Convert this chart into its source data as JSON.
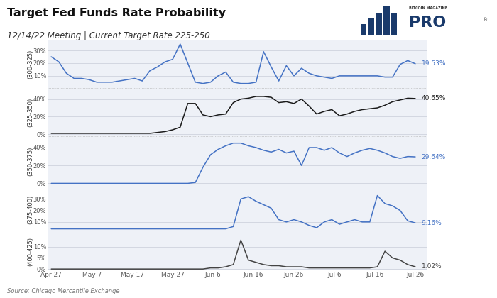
{
  "title": "Target Fed Funds Rate Probability",
  "subtitle": "12/14/22 Meeting | Current Target Rate 225-250",
  "source": "Source: Chicago Mercantile Exchange",
  "background_color": "#ffffff",
  "panel_bg": "#eef1f7",
  "grid_color": "#c8cdd8",
  "blue_color": "#4472c4",
  "black_color": "#1a1a1a",
  "dark_gray_color": "#444444",
  "x_labels": [
    "Apr 27",
    "May 7",
    "May 17",
    "May 27",
    "Jun 6",
    "Jun 16",
    "Jun 26",
    "Jul 6",
    "Jul 16",
    "Jul 26"
  ],
  "panels": [
    {
      "label": "(300-325)",
      "color": "#4472c4",
      "final_label": "19.53%",
      "yticks": [
        10,
        20,
        30
      ],
      "ylim": [
        0,
        38
      ],
      "data": [
        25,
        21,
        12,
        8,
        8,
        7,
        5,
        5,
        5,
        6,
        7,
        8,
        6,
        14,
        17,
        21,
        23,
        35,
        20,
        5,
        4,
        5,
        10,
        13,
        5,
        4,
        4,
        5,
        29,
        17,
        6,
        18,
        10,
        16,
        12,
        10,
        9,
        8,
        10,
        10,
        10,
        10,
        10,
        10,
        9,
        9,
        19,
        22,
        19.53
      ]
    },
    {
      "label": "(325-350)",
      "color": "#1a1a1a",
      "final_label": "40.65%",
      "yticks": [
        0,
        20,
        40
      ],
      "ylim": [
        -3,
        52
      ],
      "data": [
        1,
        1,
        1,
        1,
        1,
        1,
        1,
        1,
        1,
        1,
        1,
        1,
        1,
        1,
        2,
        3,
        5,
        8,
        35,
        35,
        22,
        20,
        22,
        23,
        36,
        40,
        41,
        43,
        43,
        42,
        36,
        37,
        35,
        40,
        32,
        23,
        26,
        28,
        21,
        23,
        26,
        28,
        29,
        30,
        33,
        37,
        39,
        41,
        40.65
      ]
    },
    {
      "label": "(350-375)",
      "color": "#4472c4",
      "final_label": "29.64%",
      "yticks": [
        0,
        20,
        40
      ],
      "ylim": [
        -2,
        52
      ],
      "data": [
        0,
        0,
        0,
        0,
        0,
        0,
        0,
        0,
        0,
        0,
        0,
        0,
        0,
        0,
        0,
        0,
        0,
        0,
        0,
        1,
        18,
        32,
        38,
        42,
        45,
        45,
        42,
        40,
        37,
        35,
        38,
        34,
        36,
        20,
        40,
        40,
        37,
        40,
        34,
        30,
        34,
        37,
        39,
        37,
        34,
        30,
        28,
        30,
        29.64
      ]
    },
    {
      "label": "(375-400)",
      "color": "#4472c4",
      "final_label": "9.16%",
      "yticks": [
        10,
        20,
        30
      ],
      "ylim": [
        0,
        42
      ],
      "data": [
        4,
        4,
        4,
        4,
        4,
        4,
        4,
        4,
        4,
        4,
        4,
        4,
        4,
        4,
        4,
        4,
        4,
        4,
        4,
        4,
        4,
        4,
        4,
        4,
        6,
        30,
        32,
        28,
        25,
        22,
        12,
        10,
        12,
        10,
        7,
        5,
        10,
        12,
        8,
        10,
        12,
        10,
        10,
        33,
        26,
        24,
        20,
        11,
        9.16
      ]
    },
    {
      "label": "(400-425)",
      "color": "#444444",
      "final_label": "1.02%",
      "yticks": [
        0,
        5,
        10
      ],
      "ylim": [
        -0.3,
        16
      ],
      "data": [
        0,
        0,
        0,
        0,
        0,
        0,
        0,
        0,
        0,
        0,
        0,
        0,
        0,
        0,
        0,
        0,
        0,
        0,
        0,
        0,
        0,
        0.5,
        0.5,
        1,
        2,
        13,
        4,
        3,
        2,
        1.5,
        1.5,
        1,
        1,
        1,
        0.5,
        0.5,
        0.5,
        0.5,
        0.5,
        0.5,
        0.5,
        0.5,
        0.5,
        1,
        8,
        5,
        4,
        2,
        1.02
      ]
    }
  ]
}
